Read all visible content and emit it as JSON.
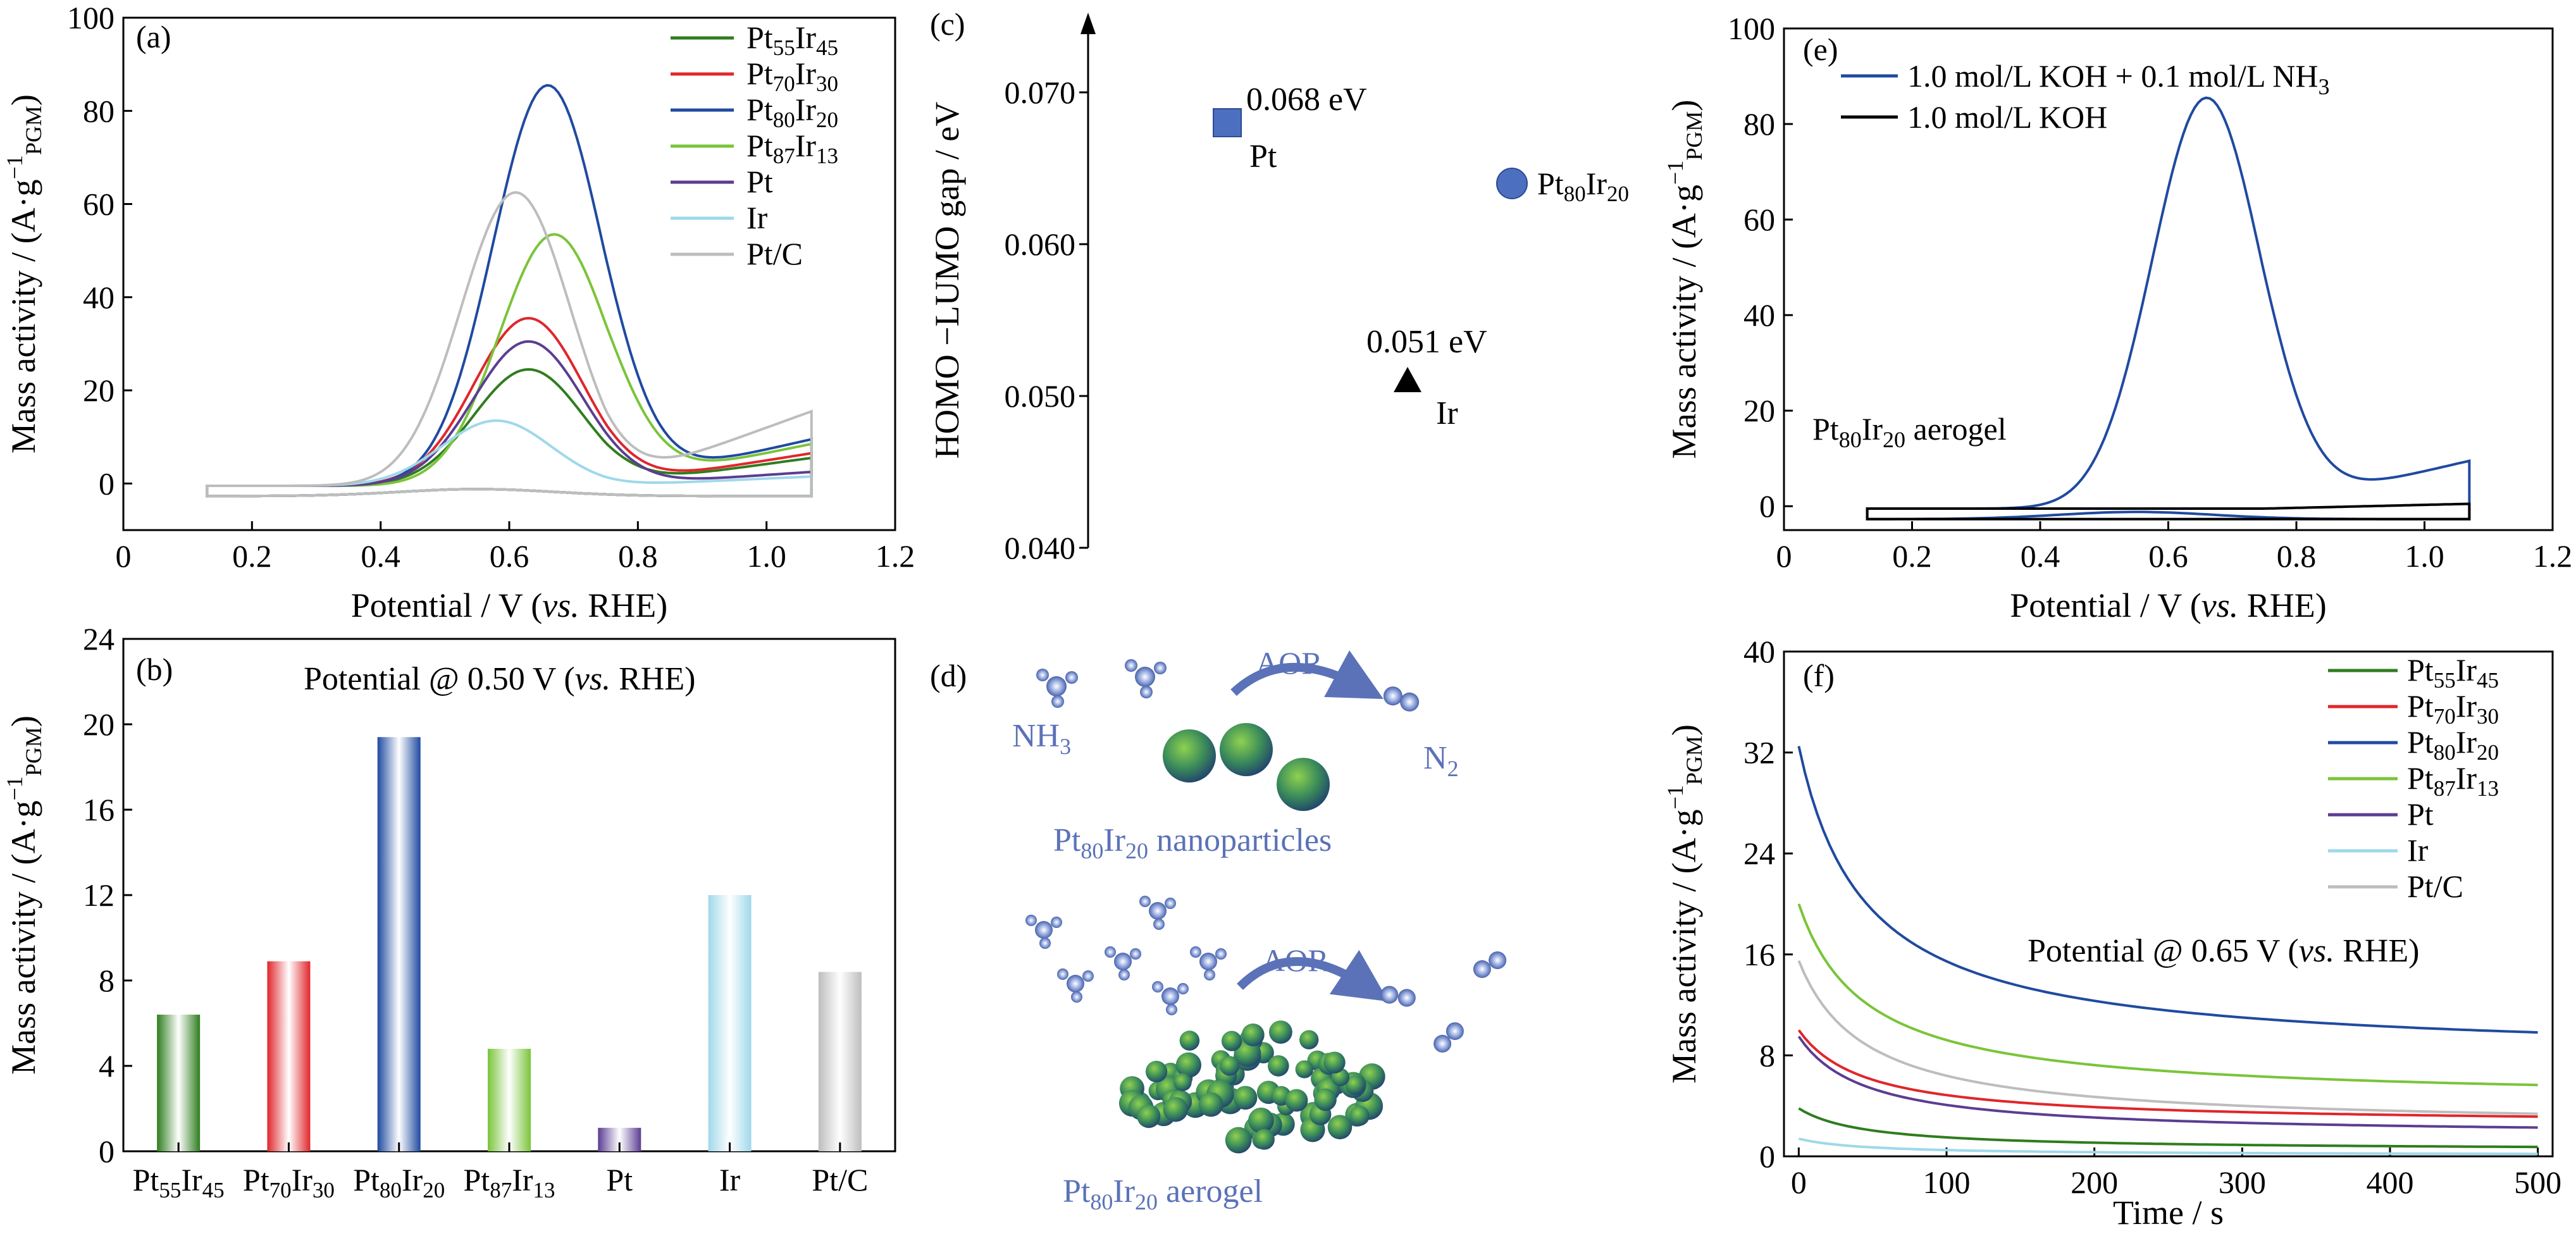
{
  "colors": {
    "Pt55Ir45": "#2e7d1e",
    "Pt70Ir30": "#e0262b",
    "Pt80Ir20": "#1f4aa0",
    "Pt87Ir13": "#7ac43a",
    "Pt": "#5b3d91",
    "Ir": "#9fd8ea",
    "Pt/C": "#bdbdbd",
    "KOH": "#000000",
    "molecule": "#5b72b8"
  },
  "legend_names": {
    "Pt55Ir45": {
      "base": "Pt",
      "sub1": "55",
      "mid": "Ir",
      "sub2": "45"
    },
    "Pt70Ir30": {
      "base": "Pt",
      "sub1": "70",
      "mid": "Ir",
      "sub2": "30"
    },
    "Pt80Ir20": {
      "base": "Pt",
      "sub1": "80",
      "mid": "Ir",
      "sub2": "20"
    },
    "Pt87Ir13": {
      "base": "Pt",
      "sub1": "87",
      "mid": "Ir",
      "sub2": "13"
    },
    "Pt": "Pt",
    "Ir": "Ir",
    "Pt/C": "Pt/C"
  },
  "chart_data": [
    {
      "panel": "(a)",
      "type": "line",
      "xlabel": "Potential / V (vs. RHE)",
      "ylabel": "Mass activity / (A·g−1PGM)",
      "xlim": [
        0,
        1.2
      ],
      "ylim": [
        -10,
        100
      ],
      "xticks": [
        0,
        0.2,
        0.4,
        0.6,
        0.8,
        1.0,
        1.2
      ],
      "yticks": [
        0,
        20,
        40,
        60,
        80,
        100
      ],
      "legend_position": "top-right",
      "series": [
        {
          "key": "Pt55Ir45",
          "peak_x": 0.63,
          "peak_y": 25,
          "end_y": 7
        },
        {
          "key": "Pt70Ir30",
          "peak_x": 0.63,
          "peak_y": 36,
          "end_y": 8
        },
        {
          "key": "Pt80Ir20",
          "peak_x": 0.66,
          "peak_y": 86,
          "end_y": 11
        },
        {
          "key": "Pt87Ir13",
          "peak_x": 0.67,
          "peak_y": 54,
          "end_y": 10
        },
        {
          "key": "Pt",
          "peak_x": 0.63,
          "peak_y": 31,
          "end_y": 4
        },
        {
          "key": "Ir",
          "peak_x": 0.58,
          "peak_y": 14,
          "end_y": 3
        },
        {
          "key": "Pt/C",
          "peak_x": 0.61,
          "peak_y": 63,
          "end_y": 17
        }
      ]
    },
    {
      "panel": "(b)",
      "type": "bar",
      "annotation": {
        "prefix": "Potential @ 0.50 V (",
        "italic": "vs.",
        "suffix": " RHE)"
      },
      "ylabel": "Mass activity / (A·g−1PGM)",
      "ylim": [
        0,
        24
      ],
      "yticks": [
        0,
        4,
        8,
        12,
        16,
        20,
        24
      ],
      "categories": [
        "Pt55Ir45",
        "Pt70Ir30",
        "Pt80Ir20",
        "Pt87Ir13",
        "Pt",
        "Ir",
        "Pt/C"
      ],
      "values": [
        6.4,
        8.9,
        19.4,
        4.8,
        1.1,
        12.0,
        8.4
      ]
    },
    {
      "panel": "(c)",
      "type": "scatter",
      "ylabel": "HOMO −LUMO gap / eV",
      "ylim": [
        0.04,
        0.074
      ],
      "yticks": [
        "0.040",
        "0.050",
        "0.060",
        "0.070"
      ],
      "points": [
        {
          "label": "Pt",
          "value_label": "0.068 eV",
          "y": 0.068,
          "marker": "square"
        },
        {
          "label": "Pt80Ir20",
          "y": 0.064,
          "marker": "circle"
        },
        {
          "label": "Ir",
          "value_label": "0.051 eV",
          "y": 0.051,
          "marker": "triangle"
        }
      ]
    },
    {
      "panel": "(e)",
      "type": "line",
      "xlabel": "Potential / V (vs. RHE)",
      "ylabel": "Mass activity / (A·g−1PGM)",
      "xlim": [
        0,
        1.2
      ],
      "ylim": [
        -5,
        100
      ],
      "xticks": [
        0,
        0.2,
        0.4,
        0.6,
        0.8,
        1.0,
        1.2
      ],
      "yticks": [
        0,
        20,
        40,
        60,
        80,
        100
      ],
      "annotation": {
        "base": "Pt",
        "sub1": "80",
        "mid": "Ir",
        "sub2": "20",
        "tail": " aerogel"
      },
      "series": [
        {
          "name": "1.0 mol/L KOH + 0.1 mol/L NH3",
          "legend_main": "1.0 mol/L KOH + 0.1 mol/L NH",
          "legend_sub": "3",
          "key": "Pt80Ir20",
          "peak_x": 0.66,
          "peak_y": 86,
          "end_y": 11
        },
        {
          "name": "1.0 mol/L KOH",
          "legend_main": "1.0 mol/L KOH",
          "key": "KOH",
          "peak_x": 0.66,
          "peak_y": 0,
          "end_y": 2
        }
      ]
    },
    {
      "panel": "(f)",
      "type": "line",
      "annotation": {
        "prefix": "Potential @ 0.65 V (",
        "italic": "vs.",
        "suffix": " RHE)"
      },
      "xlabel": "Time / s",
      "ylabel": "Mass activity / (A·g−1PGM)",
      "xlim": [
        -10,
        510
      ],
      "ylim": [
        0,
        40
      ],
      "xticks": [
        0,
        100,
        200,
        300,
        400,
        500
      ],
      "yticks": [
        0,
        8,
        16,
        24,
        32,
        40
      ],
      "series": [
        {
          "key": "Pt55Ir45",
          "y0": 3.8,
          "yend": 0.5
        },
        {
          "key": "Pt70Ir30",
          "y0": 10.0,
          "yend": 2.6
        },
        {
          "key": "Pt80Ir20",
          "y0": 32.5,
          "yend": 8.0
        },
        {
          "key": "Pt87Ir13",
          "y0": 20.0,
          "yend": 4.5
        },
        {
          "key": "Pt",
          "y0": 9.5,
          "yend": 1.7
        },
        {
          "key": "Ir",
          "y0": 1.4,
          "yend": 0.1
        },
        {
          "key": "Pt/C",
          "y0": 15.5,
          "yend": 2.4
        }
      ]
    }
  ],
  "panel_d": {
    "label": "(d)",
    "reaction": "AOR",
    "reactant": "NH",
    "reactant_sub": "3",
    "product": "N",
    "product_sub": "2",
    "caption_top": {
      "base": "Pt",
      "sub1": "80",
      "mid": "Ir",
      "sub2": "20",
      "tail": " nanoparticles"
    },
    "caption_bottom": {
      "base": "Pt",
      "sub1": "80",
      "mid": "Ir",
      "sub2": "20",
      "tail": " aerogel"
    }
  }
}
